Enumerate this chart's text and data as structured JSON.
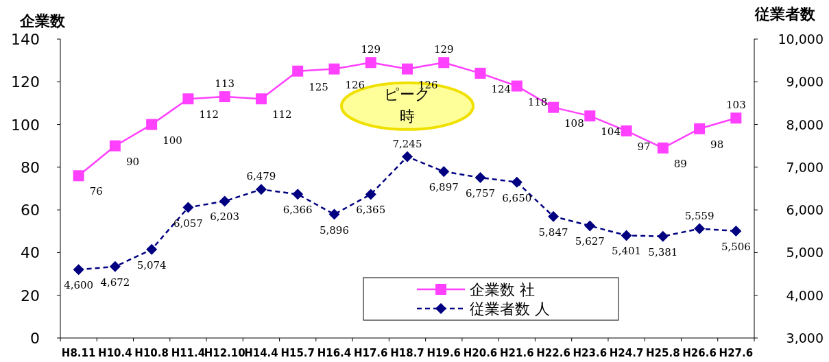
{
  "chart_data": {
    "type": "line",
    "ylabel": "企業数",
    "y2label": "従業者数",
    "categories": [
      "H8.11",
      "H10.4",
      "H10.8",
      "H11.4",
      "H12.10",
      "H14.4",
      "H15.7",
      "H16.4",
      "H17.6",
      "H18.7",
      "H19.6",
      "H20.6",
      "H21.6",
      "H22.6",
      "H23.6",
      "H24.7",
      "H25.8",
      "H26.6",
      "H27.6"
    ],
    "series": [
      {
        "name": "企業数 社",
        "color": "#ff40ff",
        "marker": "square",
        "line_style": "solid",
        "values": [
          76,
          90,
          100,
          112,
          113,
          112,
          125,
          126,
          129,
          126,
          129,
          124,
          118,
          108,
          104,
          97,
          89,
          98,
          103
        ],
        "value_labels": [
          "76",
          "90",
          "100",
          "112",
          "113",
          "112",
          "125",
          "126",
          "129",
          "126",
          "129",
          "124",
          "118",
          "108",
          "104",
          "97",
          "89",
          "98",
          "103"
        ]
      },
      {
        "name": "従業者数 人",
        "color": "#000080",
        "marker": "diamond",
        "line_style": "dashed",
        "axis": "y2",
        "values": [
          4600,
          4672,
          5074,
          6057,
          6203,
          6479,
          6366,
          5896,
          6365,
          7245,
          6897,
          6757,
          6650,
          5847,
          5627,
          5401,
          5381,
          5559,
          5506
        ],
        "value_labels": [
          "4,600",
          "4,672",
          "5,074",
          "6,057",
          "6,203",
          "6,479",
          "6,366",
          "5,896",
          "6,365",
          "7,245",
          "6,897",
          "6,757",
          "6,650",
          "5,847",
          "5,627",
          "5,401",
          "5,381",
          "5,559",
          "5,506"
        ]
      }
    ],
    "ylim": [
      0,
      140
    ],
    "yticks": [
      0,
      20,
      40,
      60,
      80,
      100,
      120,
      140
    ],
    "y2lim": [
      3000,
      10000
    ],
    "y2ticks": [
      {
        "value": 3000,
        "label": "3,000"
      },
      {
        "value": 4000,
        "label": "4,000"
      },
      {
        "value": 5000,
        "label": "5,000"
      },
      {
        "value": 6000,
        "label": "6,000"
      },
      {
        "value": 7000,
        "label": "7,000"
      },
      {
        "value": 8000,
        "label": "8,000"
      },
      {
        "value": 9000,
        "label": "9,000"
      },
      {
        "value": 10000,
        "label": "10,000"
      }
    ],
    "annotations": [
      "ピーク時"
    ],
    "grid": false,
    "legend": "bottom"
  }
}
